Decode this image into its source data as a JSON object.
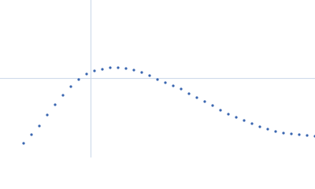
{
  "chart_data": {
    "type": "scatter",
    "x": [
      0.45,
      0.6,
      0.75,
      0.9,
      1.05,
      1.2,
      1.35,
      1.5,
      1.65,
      1.8,
      1.95,
      2.1,
      2.25,
      2.4,
      2.55,
      2.7,
      2.85,
      3.0,
      3.15,
      3.3,
      3.45,
      3.6,
      3.75,
      3.9,
      4.05,
      4.2,
      4.35,
      4.5,
      4.65,
      4.8,
      4.95,
      5.1,
      5.25,
      5.4,
      5.55,
      5.7,
      5.85,
      6.0
    ],
    "series": [
      {
        "color": "#3a66b0",
        "values": [
          0.198,
          0.319,
          0.44,
          0.594,
          0.737,
          0.869,
          0.99,
          1.089,
          1.166,
          1.21,
          1.232,
          1.254,
          1.254,
          1.243,
          1.221,
          1.188,
          1.144,
          1.089,
          1.045,
          1.001,
          0.957,
          0.891,
          0.836,
          0.781,
          0.726,
          0.66,
          0.605,
          0.561,
          0.517,
          0.473,
          0.429,
          0.396,
          0.363,
          0.341,
          0.33,
          0.319,
          0.308,
          0.297
        ]
      }
    ],
    "xlim": [
      0,
      6
    ],
    "ylim": [
      0,
      2.2
    ],
    "reference_x": 1.732,
    "reference_y": 1.104,
    "reference_color": "#c9d6e8"
  }
}
